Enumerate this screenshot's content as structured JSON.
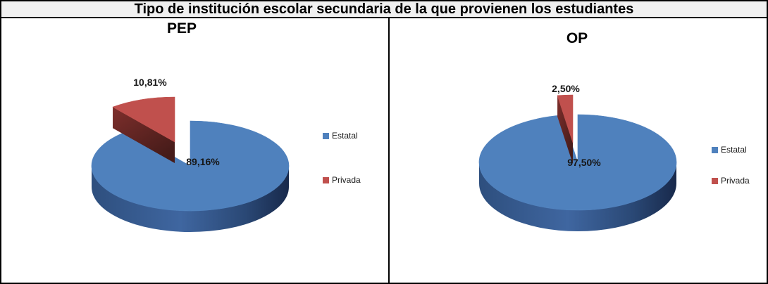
{
  "main_title": "Tipo de institución escolar secundaria de la que provienen los estudiantes",
  "chart_data": [
    {
      "type": "pie",
      "style": "3d-exploded-pie",
      "title": "PEP",
      "categories": [
        "Estatal",
        "Privada"
      ],
      "values": [
        89.16,
        10.81
      ],
      "labels": [
        "89,16%",
        "10,81%"
      ],
      "legend": [
        "Estatal",
        "Privada"
      ],
      "legend_position": "right",
      "colors": [
        "#4F81BD",
        "#C0504D"
      ]
    },
    {
      "type": "pie",
      "style": "3d-exploded-pie",
      "title": "OP",
      "categories": [
        "Estatal",
        "Privada"
      ],
      "values": [
        97.5,
        2.5
      ],
      "labels": [
        "97,50%",
        "2,50%"
      ],
      "legend": [
        "Estatal",
        "Privada"
      ],
      "legend_position": "right",
      "colors": [
        "#4F81BD",
        "#C0504D"
      ]
    }
  ]
}
